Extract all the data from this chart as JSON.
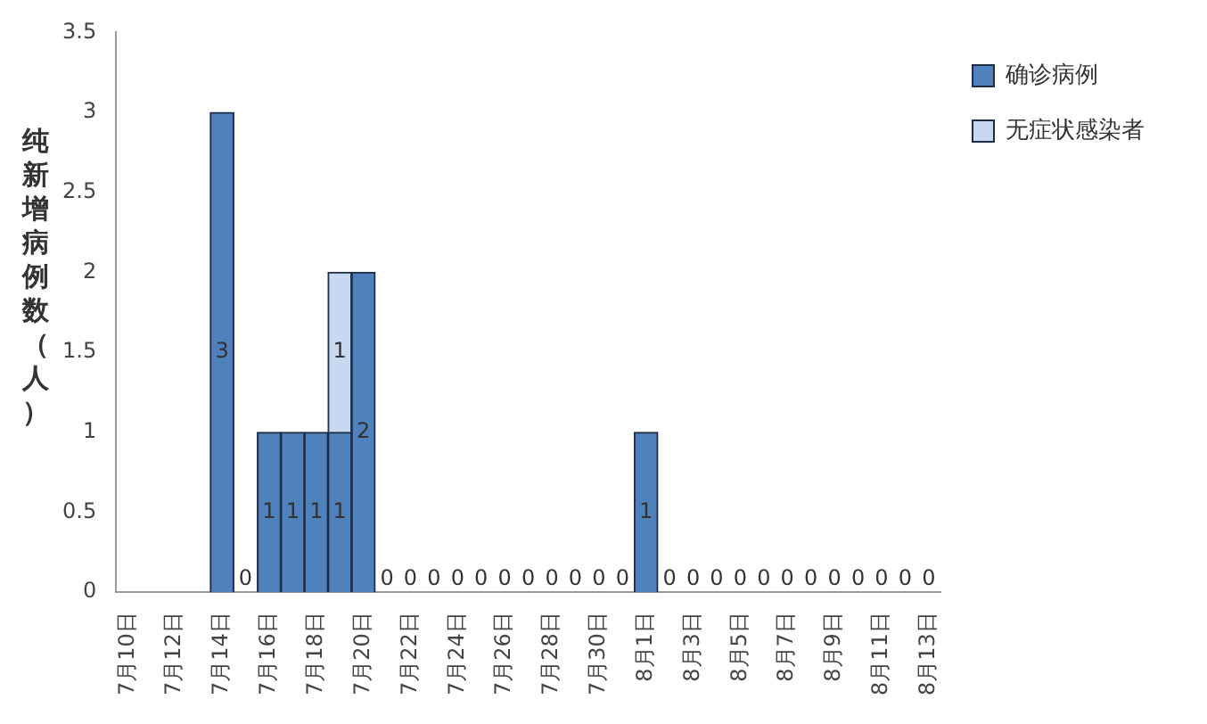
{
  "chart_data": {
    "type": "bar",
    "ylabel": "纯新增病例数（人）",
    "stacked": true,
    "legend": "top right",
    "grid": false,
    "data_labels": true,
    "categories": [
      "7月10日",
      null,
      "7月12日",
      null,
      "7月14日",
      null,
      "7月16日",
      null,
      "7月18日",
      null,
      "7月20日",
      null,
      "7月22日",
      null,
      "7月24日",
      null,
      "7月26日",
      null,
      "7月28日",
      null,
      "7月30日",
      null,
      "8月1日",
      null,
      "8月3日",
      null,
      "8月5日",
      null,
      "8月7日",
      null,
      "8月9日",
      null,
      "8月11日",
      null,
      "8月13日"
    ],
    "series": [
      {
        "name": "确诊病例",
        "color": "#4f81bd",
        "values": [
          null,
          null,
          null,
          null,
          3,
          0,
          1,
          1,
          1,
          1,
          2,
          0,
          0,
          0,
          0,
          0,
          0,
          0,
          0,
          0,
          0,
          0,
          1,
          0,
          0,
          0,
          0,
          0,
          0,
          0,
          0,
          0,
          0,
          0,
          0
        ]
      },
      {
        "name": "无症状感染者",
        "color": "#c6d9f1",
        "values": [
          null,
          null,
          null,
          null,
          null,
          null,
          null,
          null,
          null,
          1,
          null,
          null,
          null,
          null,
          null,
          null,
          null,
          null,
          null,
          null,
          null,
          null,
          null,
          null,
          null,
          null,
          null,
          null,
          null,
          null,
          null,
          null,
          null,
          null,
          null
        ]
      }
    ],
    "ylim": [
      0,
      3.5
    ],
    "yticks": [
      0,
      0.5,
      1,
      1.5,
      2,
      2.5,
      3,
      3.5
    ]
  }
}
